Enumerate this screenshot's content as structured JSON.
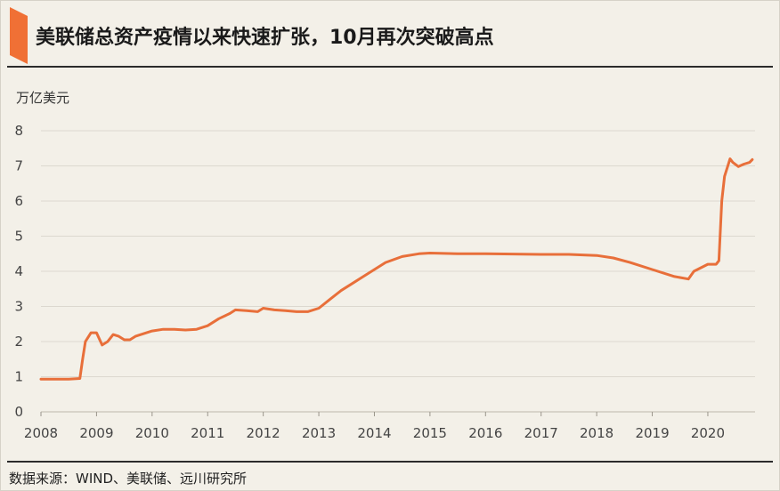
{
  "title": "美联储总资产疫情以来快速扩张，10月再次突破高点",
  "source": "数据来源：WIND、美联储、远川研究所",
  "colors": {
    "line": "#e86f3a",
    "accent": "#f07035",
    "grid": "#dcd8cf",
    "background": "#f3f0e8"
  },
  "chart_data": {
    "type": "line",
    "title": "美联储总资产疫情以来快速扩张，10月再次突破高点",
    "ylabel": "万亿美元",
    "xlabel": "",
    "ylim": [
      0,
      8
    ],
    "xlim": [
      2008,
      2020.85
    ],
    "grid": "horizontal",
    "legend": "none",
    "x_ticks": [
      "2008",
      "2009",
      "2010",
      "2011",
      "2012",
      "2013",
      "2014",
      "2015",
      "2016",
      "2017",
      "2018",
      "2019",
      "2020"
    ],
    "y_ticks": [
      "0",
      "1",
      "2",
      "3",
      "4",
      "5",
      "6",
      "7",
      "8"
    ],
    "series": [
      {
        "x": [
          2008.0,
          2008.5,
          2008.7,
          2008.75,
          2008.8,
          2008.9,
          2009.0,
          2009.1,
          2009.2,
          2009.3,
          2009.4,
          2009.5,
          2009.6,
          2009.7,
          2009.8,
          2010.0,
          2010.2,
          2010.4,
          2010.6,
          2010.8,
          2011.0,
          2011.2,
          2011.4,
          2011.5,
          2011.7,
          2011.9,
          2012.0,
          2012.2,
          2012.4,
          2012.6,
          2012.8,
          2013.0,
          2013.2,
          2013.4,
          2013.6,
          2013.8,
          2014.0,
          2014.2,
          2014.5,
          2014.8,
          2015.0,
          2015.5,
          2016.0,
          2016.5,
          2017.0,
          2017.5,
          2017.8,
          2018.0,
          2018.3,
          2018.6,
          2019.0,
          2019.4,
          2019.65,
          2019.75,
          2020.0,
          2020.15,
          2020.2,
          2020.25,
          2020.3,
          2020.4,
          2020.45,
          2020.55,
          2020.65,
          2020.75,
          2020.8
        ],
        "y": [
          0.93,
          0.93,
          0.95,
          1.5,
          2.0,
          2.25,
          2.25,
          1.9,
          2.0,
          2.2,
          2.15,
          2.05,
          2.05,
          2.15,
          2.2,
          2.3,
          2.35,
          2.35,
          2.33,
          2.35,
          2.45,
          2.65,
          2.8,
          2.9,
          2.88,
          2.85,
          2.95,
          2.9,
          2.88,
          2.85,
          2.85,
          2.95,
          3.2,
          3.45,
          3.65,
          3.85,
          4.05,
          4.25,
          4.42,
          4.5,
          4.52,
          4.5,
          4.5,
          4.49,
          4.48,
          4.48,
          4.46,
          4.45,
          4.38,
          4.25,
          4.05,
          3.85,
          3.78,
          4.0,
          4.2,
          4.2,
          4.3,
          6.0,
          6.7,
          7.2,
          7.1,
          6.98,
          7.05,
          7.1,
          7.18
        ]
      }
    ]
  }
}
